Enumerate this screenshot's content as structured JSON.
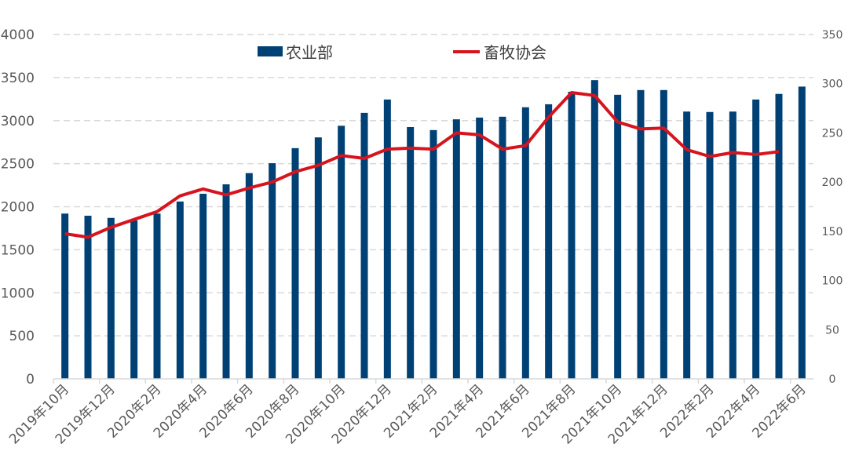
{
  "chart_data": {
    "type": "bar+line",
    "title": "",
    "categories": [
      "2019年10月",
      "2019年11月",
      "2019年12月",
      "2020年1月",
      "2020年2月",
      "2020年3月",
      "2020年4月",
      "2020年5月",
      "2020年6月",
      "2020年7月",
      "2020年8月",
      "2020年9月",
      "2020年10月",
      "2020年11月",
      "2020年12月",
      "2021年1月",
      "2021年2月",
      "2021年3月",
      "2021年4月",
      "2021年5月",
      "2021年6月",
      "2021年7月",
      "2021年8月",
      "2021年9月",
      "2021年10月",
      "2021年11月",
      "2021年12月",
      "2022年1月",
      "2022年2月",
      "2022年3月",
      "2022年4月",
      "2022年5月",
      "2022年6月"
    ],
    "x_tick_labels": [
      "2019年10月",
      "2019年12月",
      "2020年2月",
      "2020年4月",
      "2020年6月",
      "2020年8月",
      "2020年10月",
      "2020年12月",
      "2021年2月",
      "2021年4月",
      "2021年6月",
      "2021年8月",
      "2021年10月",
      "2021年12月",
      "2022年2月",
      "2022年4月",
      "2022年6月"
    ],
    "series": [
      {
        "name": "农业部",
        "type": "bar",
        "axis": "left",
        "color": "#004175",
        "values": [
          1920,
          1895,
          1870,
          1840,
          1920,
          2060,
          2150,
          2260,
          2390,
          2505,
          2680,
          2805,
          2940,
          3090,
          3245,
          2925,
          2890,
          3015,
          3035,
          3045,
          3155,
          3190,
          3335,
          3470,
          3300,
          3355,
          3355,
          3105,
          3100,
          3105,
          3245,
          3310,
          3395
        ]
      },
      {
        "name": "畜牧协会",
        "type": "line",
        "axis": "right",
        "color": "#D7141E",
        "values": [
          147.5,
          144,
          154,
          162,
          170,
          186,
          193,
          187,
          194,
          200,
          210.5,
          217,
          227,
          224,
          233.5,
          234.5,
          233.5,
          250,
          248,
          233.5,
          237,
          266,
          291,
          288,
          261,
          254,
          255,
          233,
          226,
          230,
          228,
          231,
          null
        ]
      }
    ],
    "left_axis": {
      "ylim": [
        0,
        4000
      ],
      "ticks": [
        "0",
        "500",
        "1000",
        "1500",
        "2000",
        "2500",
        "3000",
        "3500",
        "4000"
      ]
    },
    "right_axis": {
      "ylim": [
        0,
        350
      ],
      "ticks": [
        "0",
        "50",
        "100",
        "150",
        "200",
        "250",
        "300",
        "350"
      ]
    },
    "grid": "dashed horizontal",
    "legend": {
      "placement": "top-center",
      "items": [
        "农业部",
        "畜牧协会"
      ]
    }
  }
}
